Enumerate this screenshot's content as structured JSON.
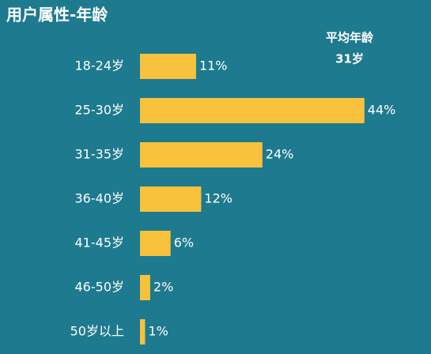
{
  "chart_data": {
    "type": "bar",
    "orientation": "horizontal",
    "title": "用户属性-年龄",
    "annotations": [
      "平均年龄",
      "31岁"
    ],
    "categories": [
      "18-24岁",
      "25-30岁",
      "31-35岁",
      "36-40岁",
      "41-45岁",
      "46-50岁",
      "50岁以上"
    ],
    "values": [
      11,
      44,
      24,
      12,
      6,
      2,
      1
    ],
    "value_labels": [
      "11%",
      "44%",
      "24%",
      "12%",
      "6%",
      "2%",
      "1%"
    ],
    "color": "#f8c23c"
  }
}
